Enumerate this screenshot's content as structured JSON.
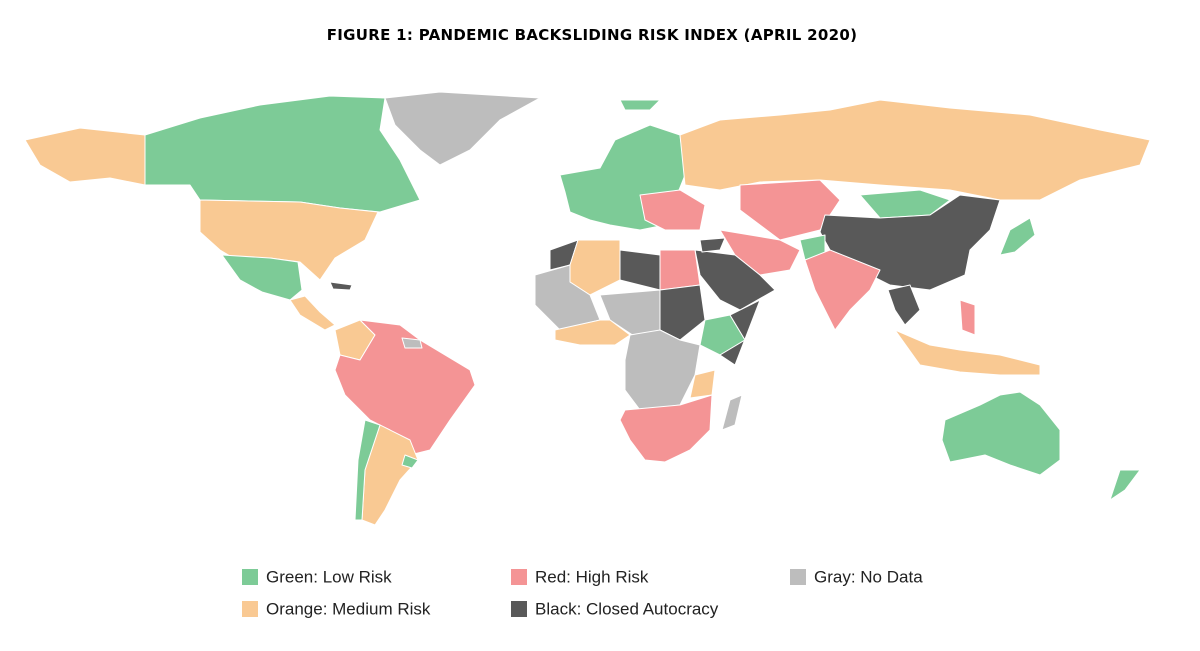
{
  "title": "FIGURE 1: PANDEMIC BACKSLIDING RISK INDEX (APRIL 2020)",
  "legend": [
    {
      "label": "Green: Low Risk",
      "color": "#7dcb97"
    },
    {
      "label": "Orange: Medium Risk",
      "color": "#f9c993"
    },
    {
      "label": "Red: High Risk",
      "color": "#f49495"
    },
    {
      "label": "Black: Closed Autocracy",
      "color": "#595959"
    },
    {
      "label": "Gray: No Data",
      "color": "#bdbdbd"
    }
  ]
}
